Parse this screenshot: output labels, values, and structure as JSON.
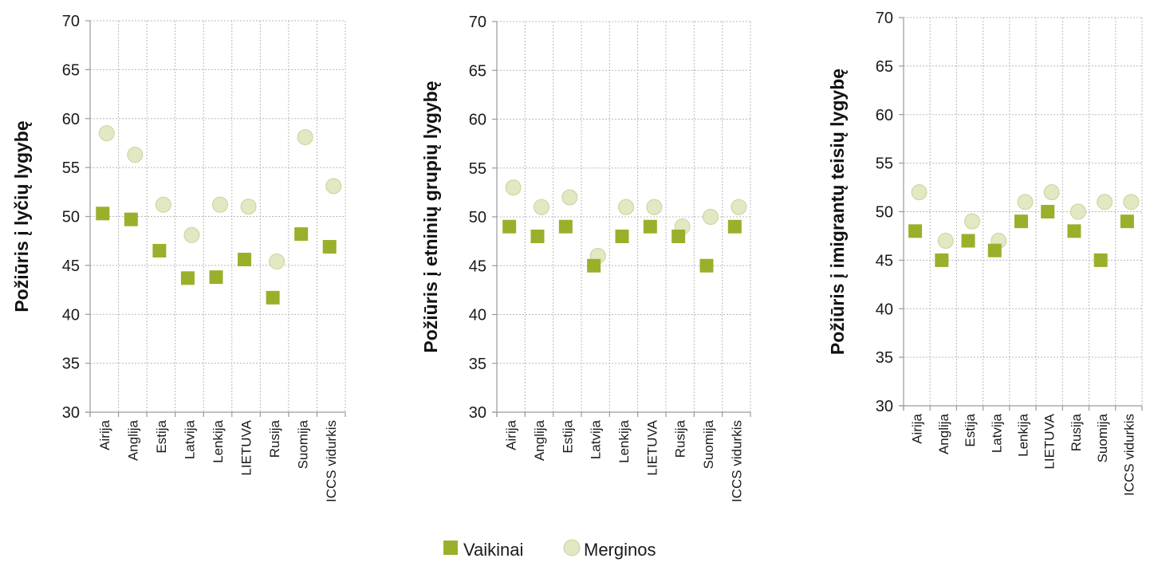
{
  "colors": {
    "vaikinai": "#9BAF2B",
    "merginos": "#E1E8C2",
    "merginos_stroke": "#C9D3A0",
    "grid": "#b8b8b8",
    "axis": "#9a9a9a"
  },
  "legend": {
    "items": [
      {
        "label": "Vaikinai",
        "marker": "square"
      },
      {
        "label": "Merginos",
        "marker": "circle"
      }
    ],
    "position": "bottom-center"
  },
  "chart_data": [
    {
      "type": "scatter",
      "ylabel": "Požiūris į lyčių lygybę",
      "ylim": [
        30,
        70
      ],
      "yticks": [
        30,
        35,
        40,
        45,
        50,
        55,
        60,
        65,
        70
      ],
      "categories": [
        "Airija",
        "Anglija",
        "Estija",
        "Latvija",
        "Lenkija",
        "LIETUVA",
        "Rusija",
        "Suomija",
        "ICCS vidurkis"
      ],
      "grid": true,
      "series": [
        {
          "name": "Vaikinai",
          "marker": "square",
          "values": [
            50.3,
            49.7,
            46.5,
            43.7,
            43.8,
            45.6,
            41.7,
            48.2,
            46.9
          ]
        },
        {
          "name": "Merginos",
          "marker": "circle",
          "values": [
            58.5,
            56.3,
            51.2,
            48.1,
            51.2,
            51.0,
            45.4,
            58.1,
            53.1
          ]
        }
      ]
    },
    {
      "type": "scatter",
      "ylabel": "Požiūris į etninių grupių lygybę",
      "ylim": [
        30,
        70
      ],
      "yticks": [
        30,
        35,
        40,
        45,
        50,
        55,
        60,
        65,
        70
      ],
      "categories": [
        "Airija",
        "Anglija",
        "Estija",
        "Latvija",
        "Lenkija",
        "LIETUVA",
        "Rusija",
        "Suomija",
        "ICCS vidurkis"
      ],
      "grid": true,
      "series": [
        {
          "name": "Vaikinai",
          "marker": "square",
          "values": [
            49,
            48,
            49,
            45,
            48,
            49,
            48,
            45,
            49
          ]
        },
        {
          "name": "Merginos",
          "marker": "circle",
          "values": [
            53,
            51,
            52,
            46,
            51,
            51,
            49,
            50,
            51
          ]
        }
      ]
    },
    {
      "type": "scatter",
      "ylabel": "Požiūris į imigrantų teisių lygybę",
      "ylim": [
        30,
        70
      ],
      "yticks": [
        30,
        35,
        40,
        45,
        50,
        55,
        60,
        65,
        70
      ],
      "categories": [
        "Airija",
        "Anglija",
        "Estija",
        "Latvija",
        "Lenkija",
        "LIETUVA",
        "Rusija",
        "Suomija",
        "ICCS  vidurkis"
      ],
      "grid": true,
      "series": [
        {
          "name": "Vaikinai",
          "marker": "square",
          "values": [
            48,
            45,
            47,
            46,
            49,
            50,
            48,
            45,
            49
          ]
        },
        {
          "name": "Merginos",
          "marker": "circle",
          "values": [
            52,
            47,
            49,
            47,
            51,
            52,
            50,
            51,
            51
          ]
        }
      ]
    }
  ]
}
